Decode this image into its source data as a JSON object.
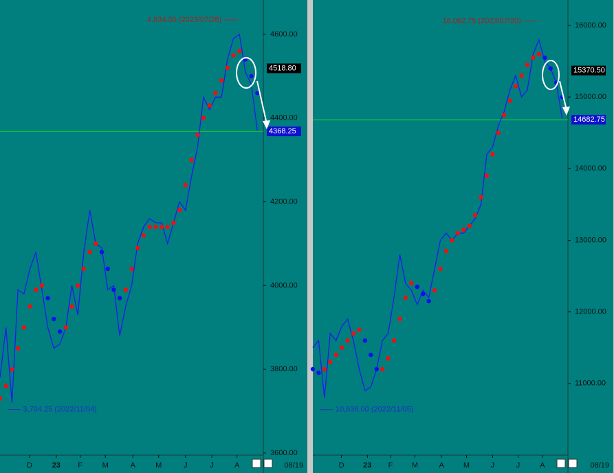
{
  "chart_data": [
    {
      "type": "candlestick-trend",
      "xlim": [
        0,
        44
      ],
      "xticks": [
        {
          "value": 4.94,
          "label": "D"
        },
        {
          "value": 9.4,
          "label": "23"
        },
        {
          "value": 13.4,
          "label": "F"
        },
        {
          "value": 17.6,
          "label": "M"
        },
        {
          "value": 22.2,
          "label": "A"
        },
        {
          "value": 26.5,
          "label": "M"
        },
        {
          "value": 31.0,
          "label": "J"
        },
        {
          "value": 35.4,
          "label": "J"
        },
        {
          "value": 39.6,
          "label": "A"
        }
      ],
      "ylim": [
        3595,
        4682
      ],
      "yticks": [
        {
          "value": 3600,
          "label": "3600.00"
        },
        {
          "value": 3800,
          "label": "3800.00"
        },
        {
          "value": 4000,
          "label": "4000.00"
        },
        {
          "value": 4200,
          "label": "4200.00"
        },
        {
          "value": 4400,
          "label": "4400.00"
        },
        {
          "value": 4600,
          "label": "4600.00"
        }
      ],
      "price": {
        "color": "#1c1cf0",
        "values": [
          3780,
          3900,
          3720,
          3990,
          3980,
          4040,
          4080,
          3990,
          3900,
          3850,
          3860,
          3900,
          4000,
          3930,
          4080,
          4180,
          4100,
          4090,
          3990,
          4000,
          3880,
          3950,
          4000,
          4100,
          4140,
          4160,
          4150,
          4150,
          4100,
          4150,
          4200,
          4180,
          4260,
          4330,
          4450,
          4420,
          4450,
          4450,
          4540,
          4590,
          4600,
          4510,
          4480,
          4370
        ]
      },
      "trend": {
        "up_color": "#ee1111",
        "down_color": "#1010ee",
        "values": [
          3730,
          3760,
          3800,
          3850,
          3900,
          3950,
          3990,
          4000,
          3970,
          3920,
          3890,
          3900,
          3950,
          4000,
          4040,
          4080,
          4100,
          4080,
          4040,
          3990,
          3970,
          3990,
          4040,
          4090,
          4120,
          4140,
          4140,
          4140,
          4140,
          4150,
          4180,
          4240,
          4300,
          4360,
          4400,
          4430,
          4460,
          4490,
          4520,
          4550,
          4560,
          4540,
          4500,
          4460
        ]
      },
      "high": {
        "value": 4634.5,
        "label": "4,634.50 (2023/07/28)"
      },
      "low": {
        "value": 3704.25,
        "label": "3,704.25 (2022/11/04)"
      },
      "trend_price": {
        "value": 4518.8,
        "label": "4518.80"
      },
      "last_price": 4368.25,
      "last_line_color": "#22dd22",
      "date_label": "08/19"
    },
    {
      "type": "candlestick-trend",
      "xlim": [
        0,
        44
      ],
      "xticks": [
        {
          "value": 4.94,
          "label": "D"
        },
        {
          "value": 9.4,
          "label": "23"
        },
        {
          "value": 13.4,
          "label": "F"
        },
        {
          "value": 17.6,
          "label": "M"
        },
        {
          "value": 22.2,
          "label": "A"
        },
        {
          "value": 26.5,
          "label": "M"
        },
        {
          "value": 31.0,
          "label": "J"
        },
        {
          "value": 35.4,
          "label": "J"
        },
        {
          "value": 39.6,
          "label": "A"
        }
      ],
      "ylim": [
        10000,
        16355
      ],
      "yticks": [
        {
          "value": 11000,
          "label": "11000.00"
        },
        {
          "value": 12000,
          "label": "12000.00"
        },
        {
          "value": 13000,
          "label": "13000.00"
        },
        {
          "value": 14000,
          "label": "14000.00"
        },
        {
          "value": 15000,
          "label": "15000.00"
        },
        {
          "value": 16000,
          "label": "16000.00"
        }
      ],
      "price": {
        "color": "#1c1cf0",
        "values": [
          11500,
          11600,
          10800,
          11700,
          11600,
          11800,
          11900,
          11600,
          11200,
          10900,
          10950,
          11200,
          11600,
          11700,
          12200,
          12800,
          12400,
          12300,
          12100,
          12300,
          12200,
          12600,
          13000,
          13100,
          13000,
          13100,
          13100,
          13200,
          13300,
          13500,
          14200,
          14300,
          14600,
          14800,
          15100,
          15300,
          15000,
          15100,
          15600,
          15800,
          15500,
          15400,
          15200,
          14700
        ]
      },
      "trend": {
        "up_color": "#ee1111",
        "down_color": "#1010ee",
        "values": [
          11200,
          11150,
          11200,
          11300,
          11400,
          11500,
          11600,
          11700,
          11750,
          11600,
          11400,
          11200,
          11200,
          11350,
          11600,
          11900,
          12200,
          12400,
          12350,
          12250,
          12150,
          12300,
          12600,
          12850,
          13000,
          13100,
          13150,
          13200,
          13350,
          13600,
          13900,
          14200,
          14500,
          14750,
          14950,
          15150,
          15300,
          15450,
          15550,
          15600,
          15550,
          15400,
          15200,
          15000
        ]
      },
      "high": {
        "value": 16062.75,
        "label": "16,062.75 (2023/07/20)"
      },
      "low": {
        "value": 10636,
        "label": "10,636.00 (2022/11/05)"
      },
      "trend_price": {
        "value": 15370.5,
        "label": "15370.50"
      },
      "last_price": 14682.75,
      "last_line_color": "#22dd22",
      "date_label": "08/19"
    }
  ]
}
